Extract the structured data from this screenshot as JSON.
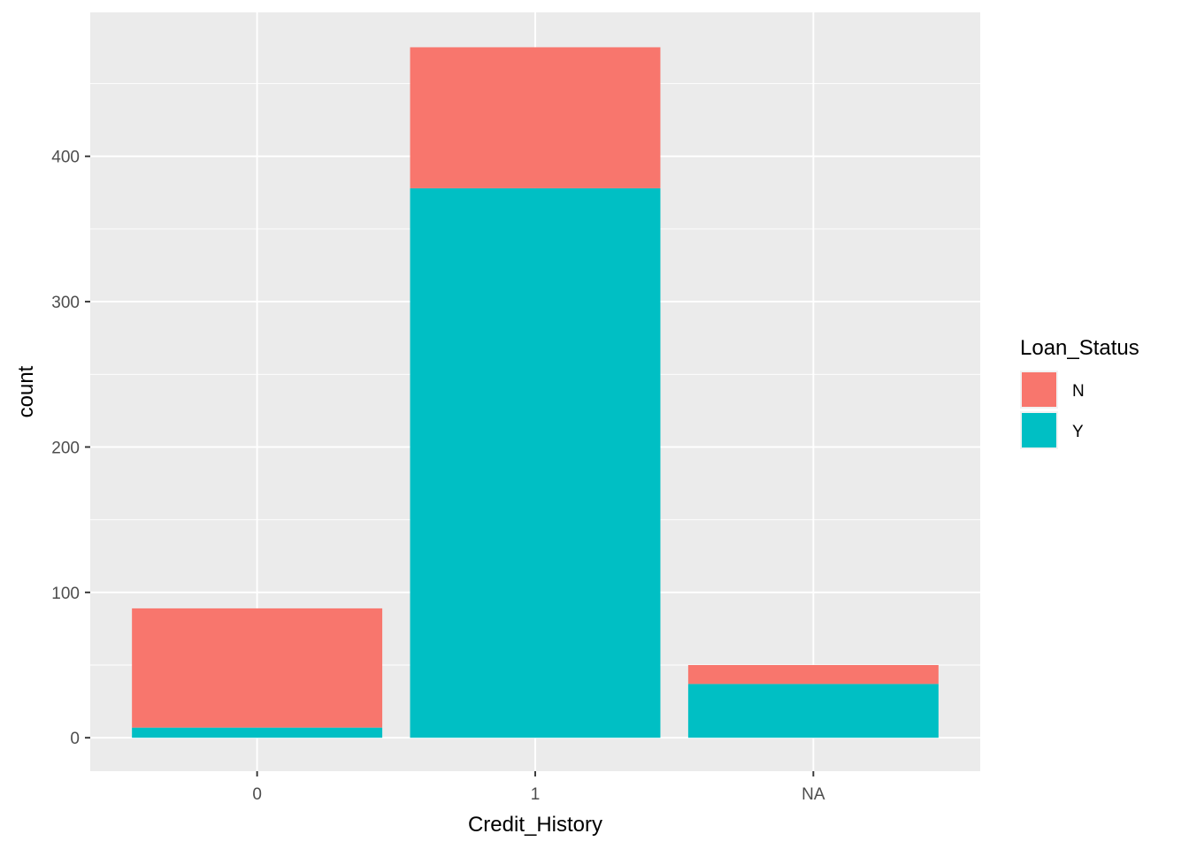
{
  "chart_data": {
    "type": "bar",
    "stacked": true,
    "categories": [
      "0",
      "1",
      "NA"
    ],
    "series": [
      {
        "name": "N",
        "values": [
          82,
          97,
          13
        ]
      },
      {
        "name": "Y",
        "values": [
          7,
          378,
          37
        ]
      }
    ],
    "xlabel": "Credit_History",
    "ylabel": "count",
    "ylim": [
      -23,
      499
    ],
    "yticks": [
      0,
      100,
      200,
      300,
      400
    ],
    "grid": true,
    "legend": {
      "title": "Loan_Status",
      "position": "right"
    },
    "colors": {
      "N": "#F8766D",
      "Y": "#00BFC4",
      "panel": "#EBEBEB",
      "grid": "#FFFFFF"
    }
  }
}
